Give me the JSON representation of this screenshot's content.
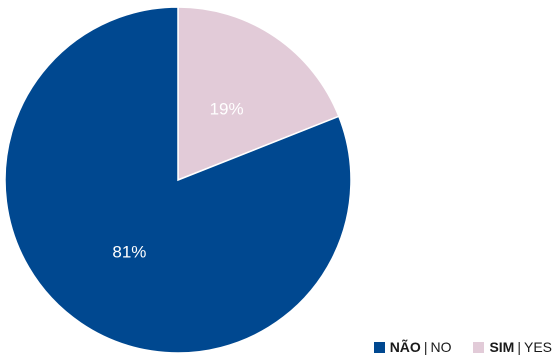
{
  "chart_data": {
    "type": "pie",
    "slices": [
      {
        "label": "SIM",
        "label_en": "YES",
        "value": 19,
        "display": "19%",
        "color": "#e2cbd8"
      },
      {
        "label": "NÃO",
        "label_en": "NO",
        "value": 81,
        "display": "81%",
        "color": "#004890"
      }
    ],
    "legend_position": "bottom-right"
  },
  "legend": {
    "items": [
      {
        "strong": "NÃO",
        "sep": "|",
        "text": "NO",
        "color": "#004890"
      },
      {
        "strong": "SIM",
        "sep": "|",
        "text": "YES",
        "color": "#e2cbd8"
      }
    ]
  }
}
